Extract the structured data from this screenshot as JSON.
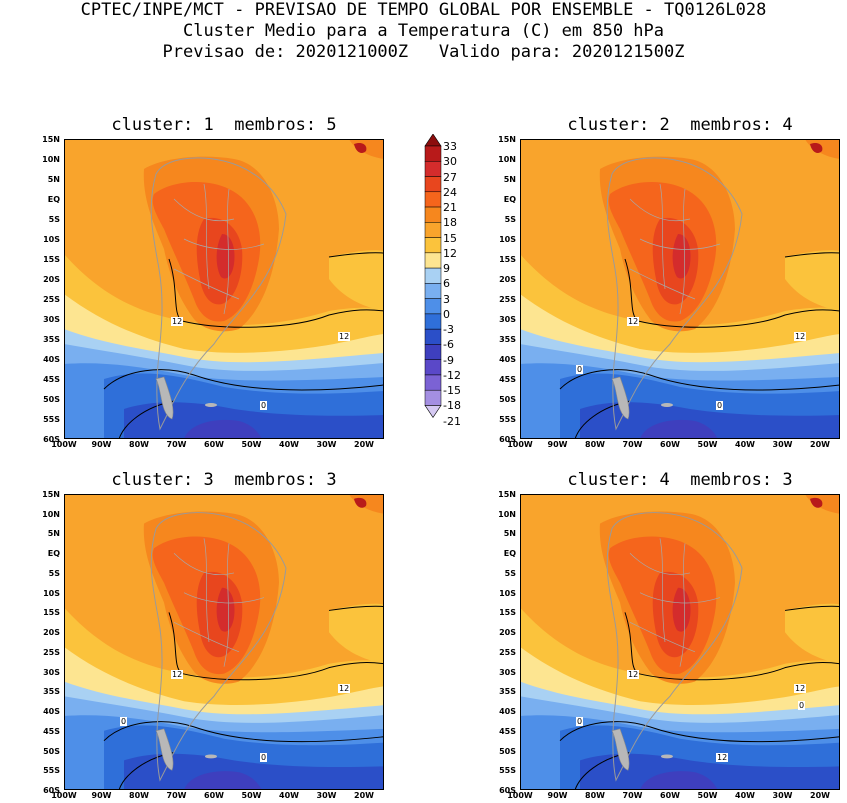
{
  "header": {
    "line1": "CPTEC/INPE/MCT - PREVISAO DE TEMPO GLOBAL POR ENSEMBLE - TQ0126L028",
    "line2": "Cluster Medio para a Temperatura (C) em 850 hPa",
    "line3": "Previsao de: 2020121000Z   Valido para: 2020121500Z"
  },
  "panels": [
    {
      "title": "cluster: 1  membros: 5",
      "contours": [
        "12",
        "12",
        "0"
      ]
    },
    {
      "title": "cluster: 2  membros: 4",
      "contours": [
        "12",
        "12",
        "0",
        "0"
      ]
    },
    {
      "title": "cluster: 3  membros: 3",
      "contours": [
        "12",
        "12",
        "0",
        "0"
      ]
    },
    {
      "title": "cluster: 4  membros: 3",
      "contours": [
        "12",
        "12",
        "12",
        "0",
        "0"
      ]
    }
  ],
  "lat_labels": [
    "15N",
    "10N",
    "5N",
    "EQ",
    "5S",
    "10S",
    "15S",
    "20S",
    "25S",
    "30S",
    "35S",
    "40S",
    "45S",
    "50S",
    "55S",
    "60S"
  ],
  "lon_labels": [
    "100W",
    "90W",
    "80W",
    "70W",
    "60W",
    "50W",
    "40W",
    "30W",
    "20W"
  ],
  "colorbar": {
    "labels": [
      "33",
      "30",
      "27",
      "24",
      "21",
      "18",
      "15",
      "12",
      "9",
      "6",
      "3",
      "0",
      "-3",
      "-6",
      "-9",
      "-12",
      "-15",
      "-18",
      "-21"
    ],
    "colors": [
      "#8c0d0d",
      "#b81a1a",
      "#d42c2c",
      "#e8461e",
      "#f5651c",
      "#f6871e",
      "#f9a42c",
      "#fbc33c",
      "#fde591",
      "#a9d1f3",
      "#79aff0",
      "#4e8fe8",
      "#2f6fd9",
      "#2b4fc8",
      "#3e3fbe",
      "#5a48c8",
      "#7b62d4",
      "#a48fe2",
      "#d5c9f2"
    ]
  }
}
